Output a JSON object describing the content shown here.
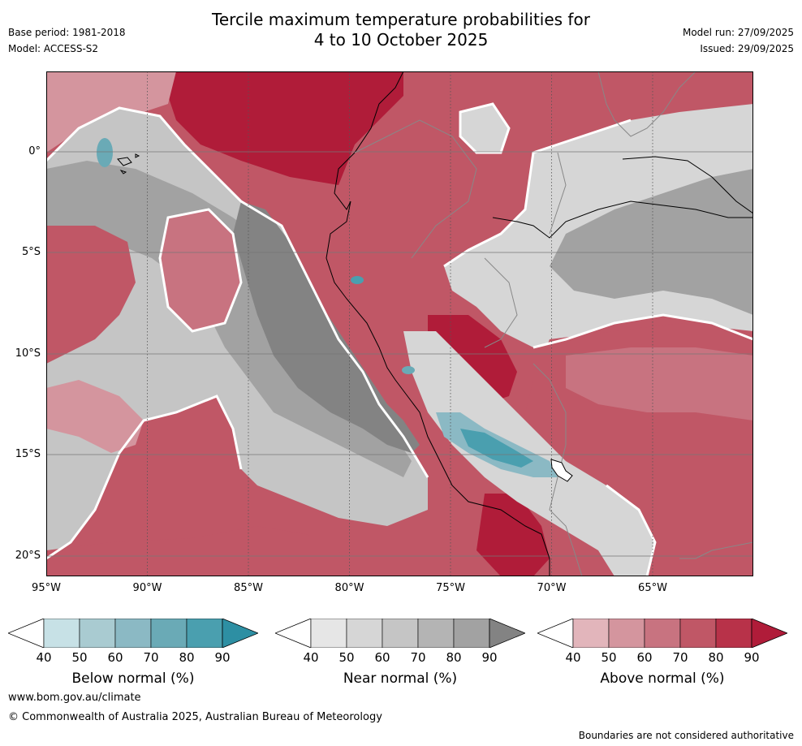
{
  "title_line1": "Tercile maximum temperature probabilities for",
  "title_line2": "4 to 10 October 2025",
  "base_period": "Base period: 1981-2018",
  "model": "Model: ACCESS-S2",
  "model_run": "Model run: 27/09/2025",
  "issued": "Issued: 29/09/2025",
  "lon_ticks": [
    "95°W",
    "90°W",
    "85°W",
    "80°W",
    "75°W",
    "70°W",
    "65°W"
  ],
  "lat_ticks": [
    "0°",
    "5°S",
    "10°S",
    "15°S",
    "20°S"
  ],
  "colorbars": [
    {
      "label": "Below normal (%)",
      "ticks": [
        "40",
        "50",
        "60",
        "70",
        "80",
        "90"
      ],
      "colors": [
        "#c7e1e6",
        "#a9cbd1",
        "#8bb9c4",
        "#6aaab6",
        "#4a9faf",
        "#2d8fa3"
      ]
    },
    {
      "label": "Near normal (%)",
      "ticks": [
        "40",
        "50",
        "60",
        "70",
        "80",
        "90"
      ],
      "colors": [
        "#e6e6e6",
        "#d6d6d6",
        "#c5c5c5",
        "#b4b4b4",
        "#a2a2a2",
        "#838383"
      ]
    },
    {
      "label": "Above normal (%)",
      "ticks": [
        "40",
        "50",
        "60",
        "70",
        "80",
        "90"
      ],
      "colors": [
        "#e2b5bb",
        "#d4959e",
        "#c87380",
        "#c05766",
        "#b83249",
        "#b01c39"
      ]
    }
  ],
  "website": "www.bom.gov.au/climate",
  "copyright": "© Commonwealth of Australia 2025, Australian Bureau of Meteorology",
  "disclaimer": "Boundaries are not considered authoritative"
}
